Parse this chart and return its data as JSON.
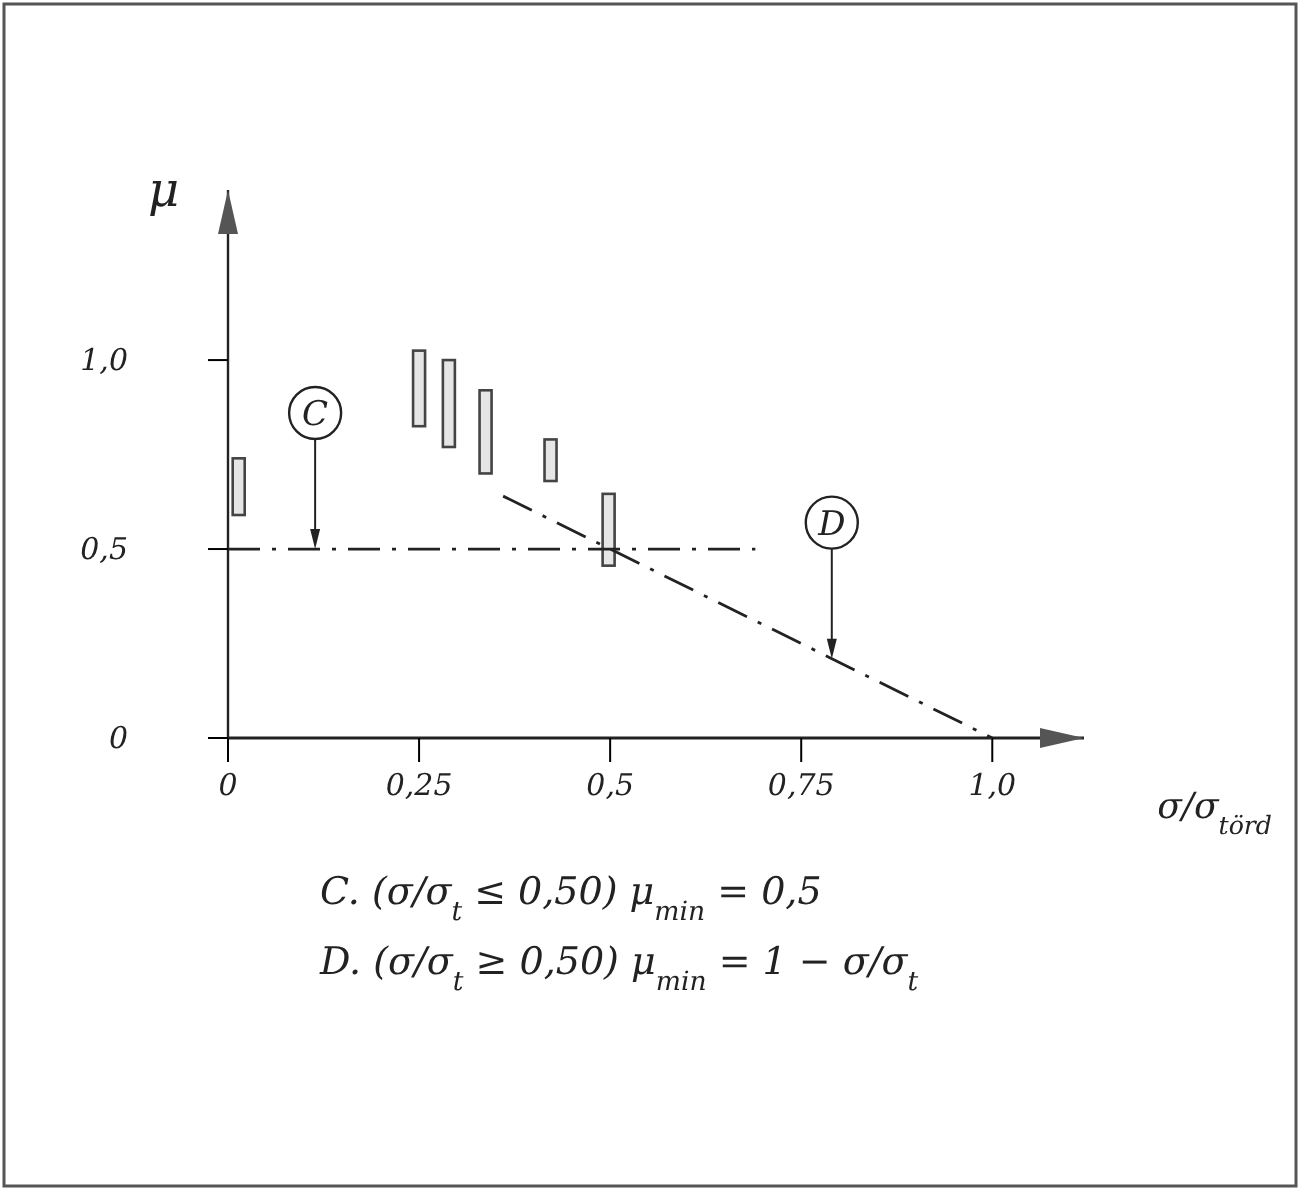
{
  "chart_data": {
    "type": "bar",
    "xlabel": "σ/σ$_{törd}$",
    "ylabel": "μ",
    "xlim": [
      0,
      1.12
    ],
    "ylim": [
      0,
      1.45
    ],
    "xticks": [
      0,
      {
        "value": 0.25,
        "label": "0,25"
      },
      {
        "value": 0.5,
        "label": "0,5"
      },
      {
        "value": 0.75,
        "label": "0,75"
      },
      {
        "value": 1.0,
        "label": "1,0"
      }
    ],
    "yticks": [
      0,
      {
        "value": 0.5,
        "label": "0,5"
      },
      {
        "value": 1.0,
        "label": "1,0"
      }
    ],
    "grid": false,
    "series": [
      {
        "color": "#444444",
        "x": [
          0.014,
          0.25,
          0.289,
          0.337,
          0.422,
          0.498
        ],
        "base": [
          0.59,
          0.825,
          0.77,
          0.7,
          0.68,
          0.456
        ],
        "values": [
          0.15,
          0.2,
          0.23,
          0.22,
          0.11,
          0.19
        ]
      },
      {
        "type": "line",
        "color": "#222222",
        "line_style": "dashed",
        "x": [
          0,
          0.69
        ],
        "values": [
          0.5,
          0.5
        ]
      },
      {
        "type": "line",
        "color": "#222222",
        "line_style": "dashed",
        "x": [
          0.36,
          1.0
        ],
        "values": [
          0.64,
          0
        ]
      }
    ],
    "annotations": [
      {
        "text": "C",
        "x": 0.114,
        "y": 0.5
      },
      {
        "text": "D",
        "x": 0.79,
        "y": 0.21
      },
      "C.  (σ/σ$_{t}$ ≤ 0,50)   μ$_{min}$ = 0,5",
      "D.  (σ/σ$_{t}$ ≥ 0,50)   μ$_{min}$ = 1 − σ/σ$_{t}$"
    ]
  }
}
